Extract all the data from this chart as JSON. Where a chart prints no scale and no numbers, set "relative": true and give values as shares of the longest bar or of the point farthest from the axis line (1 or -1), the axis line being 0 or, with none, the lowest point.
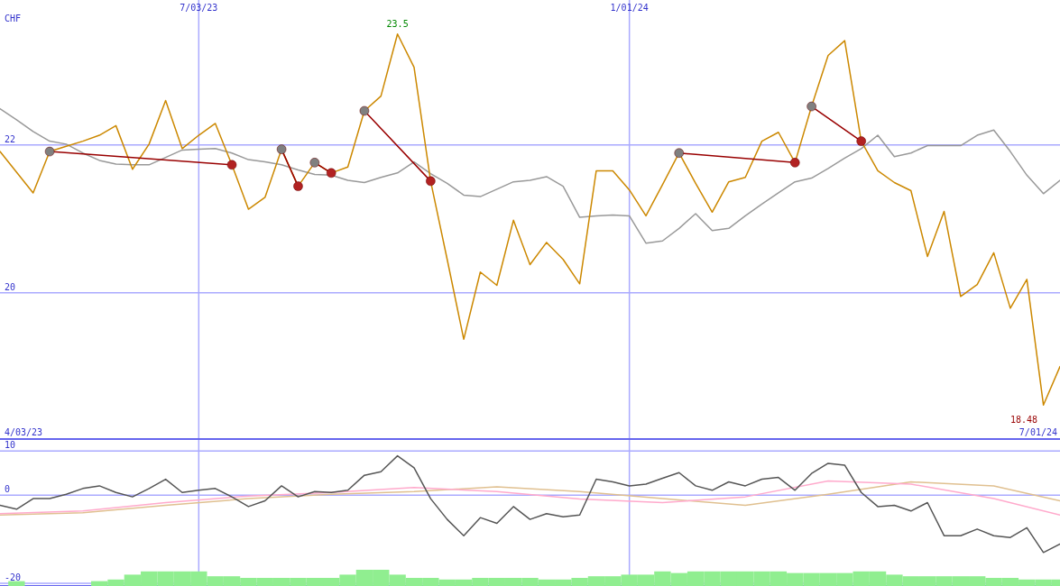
{
  "chart_data": [
    {
      "type": "line",
      "ylabel": "CHF",
      "x": [
        "2023-04-10",
        "2023-04-17",
        "2023-04-24",
        "2023-05-01",
        "2023-05-08",
        "2023-05-15",
        "2023-05-22",
        "2023-05-29",
        "2023-06-05",
        "2023-06-12",
        "2023-06-19",
        "2023-06-26",
        "2023-07-03",
        "2023-07-10",
        "2023-07-17",
        "2023-07-24",
        "2023-07-31",
        "2023-08-07",
        "2023-08-14",
        "2023-08-21",
        "2023-08-28",
        "2023-09-04",
        "2023-09-11",
        "2023-09-18",
        "2023-09-25",
        "2023-10-02",
        "2023-10-09",
        "2023-10-16",
        "2023-10-23",
        "2023-10-30",
        "2023-11-06",
        "2023-11-13",
        "2023-11-20",
        "2023-11-27",
        "2023-12-04",
        "2023-12-11",
        "2023-12-18",
        "2023-12-25",
        "2024-01-01",
        "2024-01-08",
        "2024-01-15",
        "2024-01-22",
        "2024-01-29",
        "2024-02-05",
        "2024-02-12",
        "2024-02-19",
        "2024-02-26",
        "2024-03-04",
        "2024-03-11",
        "2024-03-18",
        "2024-03-25",
        "2024-04-01",
        "2024-04-08",
        "2024-04-15",
        "2024-04-22",
        "2024-04-29",
        "2024-05-06",
        "2024-05-13",
        "2024-05-20",
        "2024-05-27",
        "2024-06-03",
        "2024-06-10",
        "2024-06-17",
        "2024-06-24",
        "2024-07-01"
      ],
      "series": [
        {
          "color": "#999999",
          "values": [
            22.49,
            22.34,
            22.18,
            22.05,
            22.01,
            21.89,
            21.79,
            21.74,
            21.73,
            21.73,
            21.83,
            21.93,
            21.94,
            21.95,
            21.89,
            21.8,
            21.77,
            21.73,
            21.66,
            21.6,
            21.59,
            21.52,
            21.49,
            21.56,
            21.62,
            21.77,
            21.61,
            21.48,
            21.32,
            21.3,
            21.4,
            21.5,
            21.52,
            21.57,
            21.44,
            21.02,
            21.04,
            21.05,
            21.04,
            20.67,
            20.7,
            20.87,
            21.07,
            20.84,
            20.87,
            21.04,
            21.2,
            21.35,
            21.5,
            21.55,
            21.68,
            21.82,
            21.95,
            22.13,
            21.84,
            21.89,
            21.99,
            21.99,
            21.99,
            22.13,
            22.2,
            21.91,
            21.59,
            21.34,
            21.52
          ]
        },
        {
          "color": "#cc8800",
          "values": [
            21.91,
            21.63,
            21.35,
            21.91,
            21.98,
            22.05,
            22.13,
            22.26,
            21.67,
            22.01,
            22.6,
            21.95,
            22.13,
            22.29,
            21.73,
            21.13,
            21.29,
            21.94,
            21.44,
            21.76,
            21.62,
            21.7,
            22.46,
            22.66,
            23.5,
            23.05,
            21.51,
            20.45,
            19.37,
            20.28,
            20.1,
            20.98,
            20.38,
            20.68,
            20.45,
            20.12,
            21.65,
            21.65,
            21.39,
            21.04,
            21.46,
            21.89,
            21.48,
            21.09,
            21.5,
            21.56,
            22.05,
            22.17,
            21.76,
            22.52,
            23.21,
            23.41,
            22.05,
            21.65,
            21.49,
            21.38,
            20.49,
            21.1,
            19.95,
            20.11,
            20.54,
            19.79,
            20.18,
            18.48,
            19.0
          ]
        },
        {
          "color": "#990000",
          "marker": "circle",
          "x": [
            "2023-05-01",
            "2023-07-17"
          ],
          "values": [
            21.91,
            21.73
          ],
          "colors": [
            "#808080",
            "#b22222"
          ]
        },
        {
          "color": "#990000",
          "marker": "circle",
          "x": [
            "2023-08-07",
            "2023-08-14"
          ],
          "values": [
            21.94,
            21.44
          ],
          "colors": [
            "#808080",
            "#b22222"
          ]
        },
        {
          "color": "#990000",
          "marker": "circle",
          "x": [
            "2023-08-21",
            "2023-08-28"
          ],
          "values": [
            21.76,
            21.62
          ],
          "colors": [
            "#808080",
            "#b22222"
          ]
        },
        {
          "color": "#990000",
          "marker": "circle",
          "x": [
            "2023-09-11",
            "2023-10-09"
          ],
          "values": [
            22.46,
            21.51
          ],
          "colors": [
            "#808080",
            "#b22222"
          ]
        },
        {
          "color": "#990000",
          "marker": "circle",
          "x": [
            "2024-01-22",
            "2024-03-11"
          ],
          "values": [
            21.89,
            21.76
          ],
          "colors": [
            "#808080",
            "#b22222"
          ]
        },
        {
          "color": "#990000",
          "marker": "circle",
          "x": [
            "2024-03-18",
            "2024-04-08"
          ],
          "values": [
            22.52,
            22.05
          ],
          "colors": [
            "#808080",
            "#b22222"
          ]
        }
      ],
      "xlim": [
        "2023-04-10",
        "2024-07-01"
      ],
      "xticks": [
        {
          "value": "2023-07-03",
          "label": "7/03/23"
        },
        {
          "value": "2024-01-01",
          "label": "1/01/24"
        }
      ],
      "ylim": [
        18.02,
        23.96
      ],
      "yticks": [
        20,
        22
      ],
      "grid": true,
      "marker": "none",
      "annotations": [
        {
          "text": "23.5",
          "x": "2023-09-25",
          "y": 23.5
        },
        {
          "text": "18.48",
          "x": "2024-06-24",
          "y": 18.48
        },
        "4/03/23",
        "7/01/24"
      ]
    },
    {
      "type": "line",
      "x": [
        "2023-04-10",
        "2023-04-17",
        "2023-04-24",
        "2023-05-01",
        "2023-05-08",
        "2023-05-15",
        "2023-05-22",
        "2023-05-29",
        "2023-06-05",
        "2023-06-12",
        "2023-06-19",
        "2023-06-26",
        "2023-07-03",
        "2023-07-10",
        "2023-07-17",
        "2023-07-24",
        "2023-07-31",
        "2023-08-07",
        "2023-08-14",
        "2023-08-21",
        "2023-08-28",
        "2023-09-04",
        "2023-09-11",
        "2023-09-18",
        "2023-09-25",
        "2023-10-02",
        "2023-10-09",
        "2023-10-16",
        "2023-10-23",
        "2023-10-30",
        "2023-11-06",
        "2023-11-13",
        "2023-11-20",
        "2023-11-27",
        "2023-12-04",
        "2023-12-11",
        "2023-12-18",
        "2023-12-25",
        "2024-01-01",
        "2024-01-08",
        "2024-01-15",
        "2024-01-22",
        "2024-01-29",
        "2024-02-05",
        "2024-02-12",
        "2024-02-19",
        "2024-02-26",
        "2024-03-04",
        "2024-03-11",
        "2024-03-18",
        "2024-03-25",
        "2024-04-01",
        "2024-04-08",
        "2024-04-15",
        "2024-04-22",
        "2024-04-29",
        "2024-05-06",
        "2024-05-13",
        "2024-05-20",
        "2024-05-27",
        "2024-06-03",
        "2024-06-10",
        "2024-06-17",
        "2024-06-24",
        "2024-07-01"
      ],
      "series": [
        {
          "color": "#e0c090",
          "x": [
            "2023-04-10",
            "2023-05-15",
            "2023-06-19",
            "2023-07-24",
            "2023-08-28",
            "2023-10-02",
            "2023-11-06",
            "2023-12-11",
            "2024-01-15",
            "2024-02-19",
            "2024-03-25",
            "2024-04-29",
            "2024-06-03",
            "2024-07-01"
          ],
          "values": [
            -4.5,
            -4.0,
            -2.3,
            -0.8,
            0.2,
            0.8,
            1.9,
            0.8,
            -0.8,
            -2.3,
            0.2,
            3.0,
            2.1,
            -1.3
          ]
        },
        {
          "color": "#ffaacc",
          "x": [
            "2023-04-10",
            "2023-05-15",
            "2023-06-19",
            "2023-07-24",
            "2023-08-28",
            "2023-10-02",
            "2023-11-06",
            "2023-12-11",
            "2024-01-15",
            "2024-02-19",
            "2024-03-25",
            "2024-04-29",
            "2024-06-03",
            "2024-07-01"
          ],
          "values": [
            -4.2,
            -3.6,
            -1.7,
            -0.2,
            0.6,
            1.7,
            0.8,
            -0.9,
            -1.7,
            -0.4,
            3.2,
            2.5,
            -0.8,
            -4.5
          ]
        },
        {
          "color": "#555555",
          "values": [
            -2.3,
            -3.2,
            -0.8,
            -0.8,
            0.2,
            1.5,
            2.1,
            0.6,
            -0.4,
            1.5,
            3.6,
            0.6,
            1.1,
            1.5,
            -0.4,
            -2.6,
            -1.3,
            2.1,
            -0.4,
            0.8,
            0.6,
            1.1,
            4.5,
            5.3,
            8.9,
            6.2,
            -0.8,
            -5.5,
            -9.2,
            -5.1,
            -6.4,
            -2.6,
            -5.5,
            -4.2,
            -4.9,
            -4.5,
            3.6,
            3.0,
            2.1,
            2.5,
            3.8,
            5.1,
            2.1,
            1.1,
            3.0,
            2.1,
            3.6,
            4.0,
            1.1,
            4.9,
            7.2,
            6.8,
            0.6,
            -2.6,
            -2.3,
            -3.6,
            -1.7,
            -9.2,
            -9.2,
            -7.7,
            -9.2,
            -9.6,
            -7.4,
            -13.0,
            -11.1
          ]
        }
      ],
      "xlim": [
        "2023-04-10",
        "2024-07-01"
      ],
      "xticks": [
        {
          "value": "2023-07-03",
          "label": null
        },
        {
          "value": "2024-01-01",
          "label": null
        }
      ],
      "ylim": [
        -20.6,
        12.5
      ],
      "yticks": [
        -20,
        0,
        10
      ],
      "grid": true,
      "tick_labels": "y",
      "marker": "none"
    },
    {
      "type": "bar",
      "relative": true,
      "color": "#90ee90",
      "x": [
        "2023-04-10",
        "2023-04-17",
        "2023-04-24",
        "2023-05-01",
        "2023-05-08",
        "2023-05-15",
        "2023-05-22",
        "2023-05-29",
        "2023-06-05",
        "2023-06-12",
        "2023-06-19",
        "2023-06-26",
        "2023-07-03",
        "2023-07-10",
        "2023-07-17",
        "2023-07-24",
        "2023-07-31",
        "2023-08-07",
        "2023-08-14",
        "2023-08-21",
        "2023-08-28",
        "2023-09-04",
        "2023-09-11",
        "2023-09-18",
        "2023-09-25",
        "2023-10-02",
        "2023-10-09",
        "2023-10-16",
        "2023-10-23",
        "2023-10-30",
        "2023-11-06",
        "2023-11-13",
        "2023-11-20",
        "2023-11-27",
        "2023-12-04",
        "2023-12-11",
        "2023-12-18",
        "2023-12-25",
        "2024-01-01",
        "2024-01-08",
        "2024-01-15",
        "2024-01-22",
        "2024-01-29",
        "2024-02-05",
        "2024-02-12",
        "2024-02-19",
        "2024-02-26",
        "2024-03-04",
        "2024-03-11",
        "2024-03-18",
        "2024-03-25",
        "2024-04-01",
        "2024-04-08",
        "2024-04-15",
        "2024-04-22",
        "2024-04-29",
        "2024-05-06",
        "2024-05-13",
        "2024-05-20",
        "2024-05-27",
        "2024-06-03",
        "2024-06-10",
        "2024-06-17",
        "2024-06-24",
        "2024-07-01"
      ],
      "values": [
        0,
        0.3,
        0,
        0,
        0,
        0,
        0.3,
        0.4,
        0.7,
        0.9,
        0.9,
        0.9,
        0.9,
        0.6,
        0.6,
        0.5,
        0.5,
        0.5,
        0.5,
        0.5,
        0.5,
        0.7,
        1,
        1,
        0.7,
        0.5,
        0.5,
        0.4,
        0.4,
        0.5,
        0.5,
        0.5,
        0.5,
        0.4,
        0.4,
        0.5,
        0.6,
        0.6,
        0.7,
        0.7,
        0.9,
        0.8,
        0.9,
        0.9,
        0.9,
        0.9,
        0.9,
        0.9,
        0.8,
        0.8,
        0.8,
        0.8,
        0.9,
        0.9,
        0.7,
        0.6,
        0.6,
        0.6,
        0.6,
        0.6,
        0.5,
        0.5,
        0.4,
        0.4,
        0.4
      ],
      "xlim": [
        "2023-04-10",
        "2024-07-01"
      ]
    }
  ]
}
